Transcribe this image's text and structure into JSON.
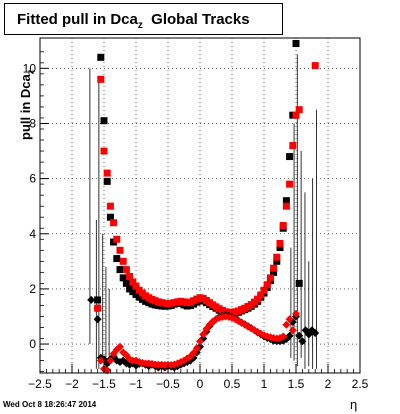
{
  "title": {
    "main": "Fitted pull in Dca",
    "sub": "z",
    "suffix": "  Global Tracks"
  },
  "ylabel": {
    "main": "pull in Dca",
    "sub": "z"
  },
  "xlabel": "η",
  "footer": "Wed Oct  8 18:26:47 2014",
  "chart_data": {
    "type": "scatter",
    "xlim": [
      -2.5,
      2.5
    ],
    "ylim": [
      -1.05,
      11.1
    ],
    "xticks": [
      -2.5,
      -2,
      -1.5,
      -1,
      -0.5,
      0,
      0.5,
      1,
      1.5,
      2,
      2.5
    ],
    "xtick_labels": [
      "−2.5",
      "−2",
      "−1.5",
      "−1",
      "−0.5",
      "0",
      "0.5",
      "1",
      "1.5",
      "2",
      "2.5"
    ],
    "yticks": [
      0,
      2,
      4,
      6,
      8,
      10
    ],
    "ytick_labels": [
      "0",
      "2",
      "4",
      "6",
      "8",
      "10"
    ],
    "grid": true,
    "series": [
      {
        "marker": "square",
        "color": "#000000",
        "points": [
          [
            -1.6,
            1.6
          ],
          [
            -1.55,
            10.4
          ],
          [
            -1.5,
            8.1
          ],
          [
            -1.45,
            5.9
          ],
          [
            -1.4,
            4.6
          ],
          [
            -1.35,
            3.7
          ],
          [
            -1.3,
            3.1
          ],
          [
            -1.25,
            2.7
          ],
          [
            -1.2,
            2.4
          ],
          [
            -1.15,
            2.2
          ],
          [
            -1.1,
            2.0
          ],
          [
            -1.05,
            1.9
          ],
          [
            -1.0,
            1.8
          ],
          [
            -0.95,
            1.7
          ],
          [
            -0.9,
            1.62
          ],
          [
            -0.85,
            1.55
          ],
          [
            -0.8,
            1.5
          ],
          [
            -0.75,
            1.45
          ],
          [
            -0.7,
            1.42
          ],
          [
            -0.65,
            1.4
          ],
          [
            -0.6,
            1.38
          ],
          [
            -0.55,
            1.37
          ],
          [
            -0.5,
            1.38
          ],
          [
            -0.45,
            1.4
          ],
          [
            -0.4,
            1.45
          ],
          [
            -0.35,
            1.5
          ],
          [
            -0.3,
            1.47
          ],
          [
            -0.25,
            1.42
          ],
          [
            -0.2,
            1.38
          ],
          [
            -0.15,
            1.4
          ],
          [
            -0.1,
            1.45
          ],
          [
            -0.05,
            1.52
          ],
          [
            0.0,
            1.58
          ],
          [
            0.05,
            1.56
          ],
          [
            0.1,
            1.5
          ],
          [
            0.15,
            1.43
          ],
          [
            0.2,
            1.36
          ],
          [
            0.25,
            1.3
          ],
          [
            0.3,
            1.23
          ],
          [
            0.35,
            1.17
          ],
          [
            0.4,
            1.12
          ],
          [
            0.45,
            1.1
          ],
          [
            0.5,
            1.1
          ],
          [
            0.55,
            1.12
          ],
          [
            0.6,
            1.15
          ],
          [
            0.65,
            1.2
          ],
          [
            0.7,
            1.25
          ],
          [
            0.75,
            1.3
          ],
          [
            0.8,
            1.37
          ],
          [
            0.85,
            1.45
          ],
          [
            0.9,
            1.55
          ],
          [
            0.95,
            1.7
          ],
          [
            1.0,
            1.85
          ],
          [
            1.05,
            2.05
          ],
          [
            1.1,
            2.3
          ],
          [
            1.15,
            2.6
          ],
          [
            1.2,
            3.0
          ],
          [
            1.25,
            3.5
          ],
          [
            1.3,
            4.2
          ],
          [
            1.35,
            5.2
          ],
          [
            1.4,
            6.8
          ],
          [
            1.45,
            8.3
          ],
          [
            1.5,
            10.9
          ],
          [
            1.55,
            2.2
          ]
        ]
      },
      {
        "marker": "square",
        "color": "#ff0000",
        "points": [
          [
            -1.6,
            1.3
          ],
          [
            -1.55,
            9.6
          ],
          [
            -1.5,
            7.0
          ],
          [
            -1.45,
            6.2
          ],
          [
            -1.4,
            5.0
          ],
          [
            -1.35,
            4.4
          ],
          [
            -1.3,
            3.8
          ],
          [
            -1.25,
            3.4
          ],
          [
            -1.2,
            3.0
          ],
          [
            -1.15,
            2.7
          ],
          [
            -1.1,
            2.45
          ],
          [
            -1.05,
            2.25
          ],
          [
            -1.0,
            2.1
          ],
          [
            -0.95,
            1.95
          ],
          [
            -0.9,
            1.85
          ],
          [
            -0.85,
            1.75
          ],
          [
            -0.8,
            1.68
          ],
          [
            -0.75,
            1.62
          ],
          [
            -0.7,
            1.57
          ],
          [
            -0.65,
            1.53
          ],
          [
            -0.6,
            1.5
          ],
          [
            -0.55,
            1.48
          ],
          [
            -0.5,
            1.47
          ],
          [
            -0.45,
            1.48
          ],
          [
            -0.4,
            1.5
          ],
          [
            -0.35,
            1.53
          ],
          [
            -0.3,
            1.55
          ],
          [
            -0.25,
            1.53
          ],
          [
            -0.2,
            1.5
          ],
          [
            -0.15,
            1.52
          ],
          [
            -0.1,
            1.57
          ],
          [
            -0.05,
            1.63
          ],
          [
            0.0,
            1.68
          ],
          [
            0.05,
            1.65
          ],
          [
            0.1,
            1.58
          ],
          [
            0.15,
            1.5
          ],
          [
            0.2,
            1.42
          ],
          [
            0.25,
            1.35
          ],
          [
            0.3,
            1.28
          ],
          [
            0.35,
            1.22
          ],
          [
            0.4,
            1.17
          ],
          [
            0.45,
            1.15
          ],
          [
            0.5,
            1.15
          ],
          [
            0.55,
            1.17
          ],
          [
            0.6,
            1.2
          ],
          [
            0.65,
            1.25
          ],
          [
            0.7,
            1.3
          ],
          [
            0.75,
            1.36
          ],
          [
            0.8,
            1.43
          ],
          [
            0.85,
            1.52
          ],
          [
            0.9,
            1.63
          ],
          [
            0.95,
            1.78
          ],
          [
            1.0,
            1.95
          ],
          [
            1.05,
            2.15
          ],
          [
            1.1,
            2.4
          ],
          [
            1.15,
            2.75
          ],
          [
            1.2,
            3.15
          ],
          [
            1.25,
            3.65
          ],
          [
            1.3,
            4.3
          ],
          [
            1.35,
            5.0
          ],
          [
            1.4,
            5.8
          ],
          [
            1.45,
            7.2
          ],
          [
            1.5,
            8.3
          ],
          [
            1.55,
            8.5
          ],
          [
            1.8,
            10.1
          ]
        ]
      },
      {
        "marker": "diamond",
        "color": "#000000",
        "points": [
          [
            -1.7,
            1.6
          ],
          [
            -1.6,
            0.9
          ],
          [
            -1.55,
            -0.5
          ],
          [
            -1.5,
            -0.55
          ],
          [
            -1.45,
            -0.7
          ],
          [
            -1.4,
            -0.55
          ],
          [
            -1.35,
            -0.45
          ],
          [
            -1.3,
            -0.6
          ],
          [
            -1.25,
            -0.65
          ],
          [
            -1.2,
            -0.6
          ],
          [
            -1.15,
            -0.7
          ],
          [
            -1.1,
            -0.75
          ],
          [
            -1.05,
            -0.7
          ],
          [
            -1.0,
            -0.78
          ],
          [
            -0.95,
            -0.72
          ],
          [
            -0.9,
            -0.7
          ],
          [
            -0.85,
            -0.75
          ],
          [
            -0.8,
            -0.8
          ],
          [
            -0.75,
            -0.75
          ],
          [
            -0.7,
            -0.8
          ],
          [
            -0.65,
            -0.85
          ],
          [
            -0.6,
            -0.8
          ],
          [
            -0.55,
            -0.85
          ],
          [
            -0.5,
            -0.8
          ],
          [
            -0.45,
            -0.82
          ],
          [
            -0.4,
            -0.85
          ],
          [
            -0.35,
            -0.8
          ],
          [
            -0.3,
            -0.75
          ],
          [
            -0.25,
            -0.7
          ],
          [
            -0.2,
            -0.65
          ],
          [
            -0.15,
            -0.6
          ],
          [
            -0.1,
            -0.5
          ],
          [
            -0.05,
            -0.3
          ],
          [
            0.0,
            -0.1
          ],
          [
            0.05,
            0.2
          ],
          [
            0.1,
            0.45
          ],
          [
            0.15,
            0.65
          ],
          [
            0.2,
            0.8
          ],
          [
            0.25,
            0.9
          ],
          [
            0.3,
            0.98
          ],
          [
            0.35,
            1.02
          ],
          [
            0.4,
            1.05
          ],
          [
            0.45,
            1.02
          ],
          [
            0.5,
            0.98
          ],
          [
            0.55,
            0.92
          ],
          [
            0.6,
            0.85
          ],
          [
            0.65,
            0.78
          ],
          [
            0.7,
            0.72
          ],
          [
            0.75,
            0.65
          ],
          [
            0.8,
            0.58
          ],
          [
            0.85,
            0.5
          ],
          [
            0.9,
            0.42
          ],
          [
            0.95,
            0.35
          ],
          [
            1.0,
            0.28
          ],
          [
            1.05,
            0.22
          ],
          [
            1.1,
            0.18
          ],
          [
            1.15,
            0.12
          ],
          [
            1.2,
            0.1
          ],
          [
            1.25,
            0.1
          ],
          [
            1.3,
            0.12
          ],
          [
            1.35,
            0.18
          ],
          [
            1.4,
            0.3
          ],
          [
            1.45,
            0.8
          ],
          [
            1.5,
            1.0
          ],
          [
            1.55,
            0.3
          ],
          [
            1.6,
            0.1
          ],
          [
            1.65,
            0.5
          ],
          [
            1.7,
            0.35
          ],
          [
            1.75,
            0.5
          ],
          [
            1.8,
            0.4
          ]
        ]
      },
      {
        "marker": "diamond",
        "color": "#ff0000",
        "points": [
          [
            -1.6,
            1.3
          ],
          [
            -1.55,
            -0.6
          ],
          [
            -1.5,
            -0.9
          ],
          [
            -1.45,
            -0.95
          ],
          [
            -1.4,
            -0.6
          ],
          [
            -1.35,
            -0.35
          ],
          [
            -1.3,
            -0.2
          ],
          [
            -1.25,
            -0.1
          ],
          [
            -1.2,
            -0.3
          ],
          [
            -1.15,
            -0.4
          ],
          [
            -1.1,
            -0.55
          ],
          [
            -1.05,
            -0.6
          ],
          [
            -1.0,
            -0.6
          ],
          [
            -0.95,
            -0.65
          ],
          [
            -0.9,
            -0.68
          ],
          [
            -0.85,
            -0.7
          ],
          [
            -0.8,
            -0.7
          ],
          [
            -0.75,
            -0.72
          ],
          [
            -0.7,
            -0.74
          ],
          [
            -0.65,
            -0.75
          ],
          [
            -0.6,
            -0.75
          ],
          [
            -0.55,
            -0.76
          ],
          [
            -0.5,
            -0.75
          ],
          [
            -0.45,
            -0.76
          ],
          [
            -0.4,
            -0.74
          ],
          [
            -0.35,
            -0.7
          ],
          [
            -0.3,
            -0.65
          ],
          [
            -0.25,
            -0.6
          ],
          [
            -0.2,
            -0.52
          ],
          [
            -0.15,
            -0.45
          ],
          [
            -0.1,
            -0.32
          ],
          [
            -0.05,
            -0.15
          ],
          [
            0.0,
            0.1
          ],
          [
            0.05,
            0.35
          ],
          [
            0.1,
            0.55
          ],
          [
            0.15,
            0.7
          ],
          [
            0.2,
            0.82
          ],
          [
            0.25,
            0.9
          ],
          [
            0.3,
            0.95
          ],
          [
            0.35,
            0.98
          ],
          [
            0.4,
            1.0
          ],
          [
            0.45,
            0.98
          ],
          [
            0.5,
            0.95
          ],
          [
            0.55,
            0.9
          ],
          [
            0.6,
            0.83
          ],
          [
            0.65,
            0.77
          ],
          [
            0.7,
            0.7
          ],
          [
            0.75,
            0.63
          ],
          [
            0.8,
            0.57
          ],
          [
            0.85,
            0.5
          ],
          [
            0.9,
            0.44
          ],
          [
            0.95,
            0.38
          ],
          [
            1.0,
            0.32
          ],
          [
            1.05,
            0.28
          ],
          [
            1.1,
            0.25
          ],
          [
            1.15,
            0.22
          ],
          [
            1.2,
            0.2
          ],
          [
            1.25,
            0.22
          ],
          [
            1.3,
            0.28
          ],
          [
            1.35,
            0.7
          ],
          [
            1.4,
            0.9
          ],
          [
            1.45,
            0.5
          ],
          [
            1.5,
            1.1
          ]
        ]
      }
    ],
    "error_bars": [
      [
        -1.72,
        0.0,
        10.0
      ],
      [
        -1.62,
        -0.9,
        4.5
      ],
      [
        -1.58,
        -0.9,
        9.5
      ],
      [
        -1.52,
        -0.6,
        4.0
      ],
      [
        -1.47,
        -0.9,
        2.8
      ],
      [
        -1.42,
        -0.8,
        2.0
      ],
      [
        1.42,
        -0.5,
        3.5
      ],
      [
        1.47,
        -0.6,
        8.0
      ],
      [
        1.52,
        -0.8,
        10.5
      ],
      [
        1.58,
        -0.5,
        7.0
      ],
      [
        1.64,
        -0.9,
        5.5
      ],
      [
        1.7,
        -0.8,
        3.0
      ],
      [
        1.76,
        -0.9,
        6.0
      ],
      [
        1.82,
        -0.9,
        8.5
      ]
    ]
  }
}
